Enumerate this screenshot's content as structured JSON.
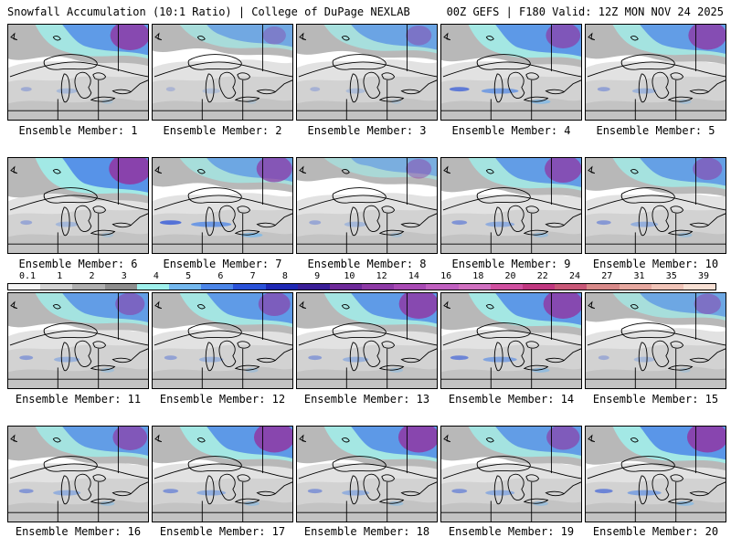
{
  "header": {
    "left": "Snowfall Accumulation (10:1 Ratio) | College of DuPage NEXLAB",
    "right": "00Z GEFS | F180 Valid: 12Z MON NOV 24 2025"
  },
  "legend": {
    "ticks": [
      "0.1",
      "1",
      "2",
      "3",
      "4",
      "5",
      "6",
      "7",
      "8",
      "9",
      "10",
      "12",
      "14",
      "16",
      "18",
      "20",
      "22",
      "24",
      "27",
      "31",
      "35",
      "39"
    ],
    "colors": [
      "#f4f4f4",
      "#d4d4d4",
      "#b0b0b0",
      "#8e8e8e",
      "#9ff0ec",
      "#74b8ee",
      "#4c86e8",
      "#2a52d8",
      "#1e28b4",
      "#3a1e98",
      "#6e2a9a",
      "#8e3aa6",
      "#a84ab4",
      "#c060c0",
      "#d070c0",
      "#d050a0",
      "#c03880",
      "#c85878",
      "#d88a8a",
      "#e6a8a0",
      "#f0c4b8",
      "#f8e0d4"
    ]
  },
  "panels": [
    {
      "label": "Ensemble Member: 1",
      "north": 0.8,
      "pole": 0.85,
      "band": 0.2
    },
    {
      "label": "Ensemble Member: 2",
      "north": 0.5,
      "pole": 0.2,
      "band": 0.1
    },
    {
      "label": "Ensemble Member: 3",
      "north": 0.6,
      "pole": 0.3,
      "band": 0.15
    },
    {
      "label": "Ensemble Member: 4",
      "north": 0.85,
      "pole": 0.65,
      "band": 0.7
    },
    {
      "label": "Ensemble Member: 5",
      "north": 0.75,
      "pole": 0.8,
      "band": 0.3
    },
    {
      "label": "Ensemble Member: 6",
      "north": 0.95,
      "pole": 0.95,
      "band": 0.25
    },
    {
      "label": "Ensemble Member: 7",
      "north": 0.55,
      "pole": 0.7,
      "band": 0.8
    },
    {
      "label": "Ensemble Member: 8",
      "north": 0.35,
      "pole": 0.3,
      "band": 0.25
    },
    {
      "label": "Ensemble Member: 9",
      "north": 0.75,
      "pole": 0.75,
      "band": 0.45
    },
    {
      "label": "Ensemble Member: 10",
      "north": 0.7,
      "pole": 0.45,
      "band": 0.4
    },
    {
      "label": "Ensemble Member: 11",
      "north": 0.75,
      "pole": 0.45,
      "band": 0.35
    },
    {
      "label": "Ensemble Member: 12",
      "north": 0.8,
      "pole": 0.55,
      "band": 0.3
    },
    {
      "label": "Ensemble Member: 13",
      "north": 0.8,
      "pole": 0.85,
      "band": 0.35
    },
    {
      "label": "Ensemble Member: 14",
      "north": 0.85,
      "pole": 0.85,
      "band": 0.6
    },
    {
      "label": "Ensemble Member: 15",
      "north": 0.55,
      "pole": 0.35,
      "band": 0.2
    },
    {
      "label": "Ensemble Member: 16",
      "north": 0.75,
      "pole": 0.65,
      "band": 0.4
    },
    {
      "label": "Ensemble Member: 17",
      "north": 0.85,
      "pole": 0.9,
      "band": 0.45
    },
    {
      "label": "Ensemble Member: 18",
      "north": 0.85,
      "pole": 0.9,
      "band": 0.4
    },
    {
      "label": "Ensemble Member: 19",
      "north": 0.75,
      "pole": 0.6,
      "band": 0.45
    },
    {
      "label": "Ensemble Member: 20",
      "north": 0.9,
      "pole": 0.9,
      "band": 0.6
    }
  ]
}
